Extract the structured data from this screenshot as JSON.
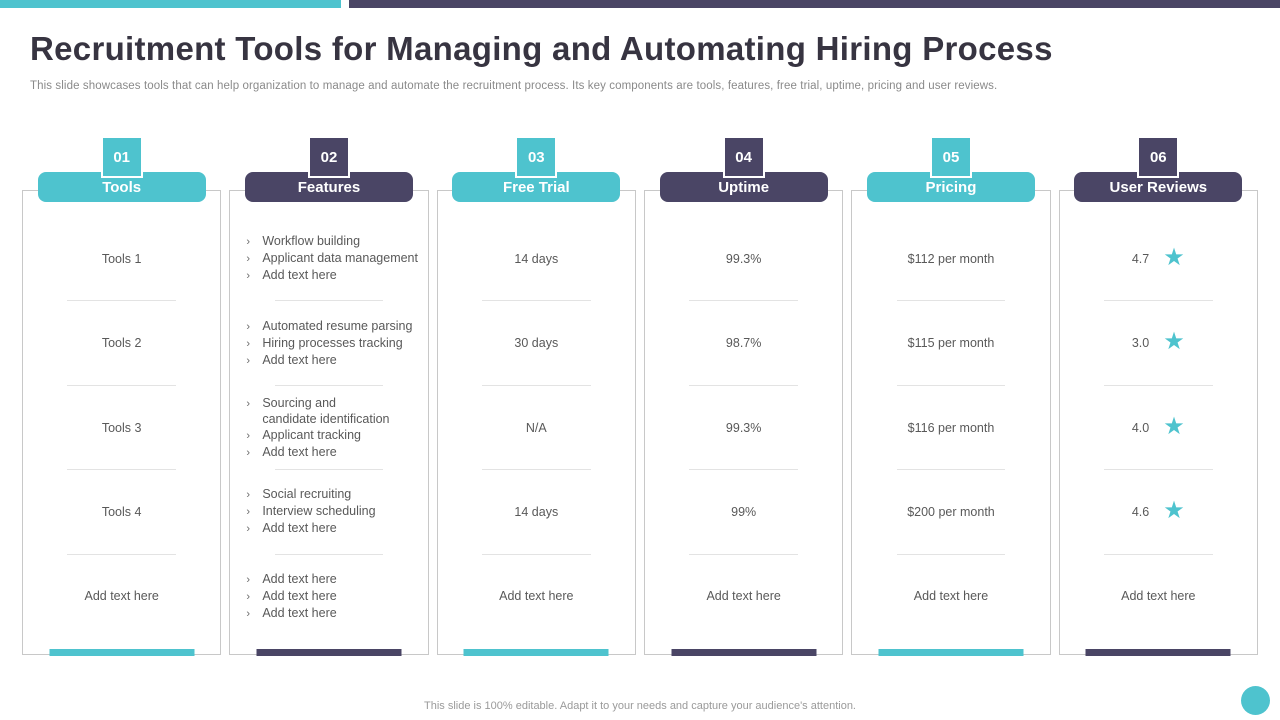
{
  "slide": {
    "title": "Recruitment Tools for Managing and Automating Hiring Process",
    "subtitle": "This slide showcases tools that can help organization to manage and automate the recruitment process. Its key components are tools, features, free trial, uptime, pricing and user reviews.",
    "footer": "This slide is 100% editable.  Adapt it to your needs and capture your audience's attention."
  },
  "colors": {
    "teal": "#4ec3ce",
    "purple": "#4a4565"
  },
  "icons": {
    "star": "★",
    "bullet": "›"
  },
  "columns": [
    {
      "number": "01",
      "label": "Tools",
      "rows": [
        "Tools 1",
        "Tools 2",
        "Tools 3",
        "Tools 4",
        "Add text here"
      ]
    },
    {
      "number": "02",
      "label": "Features",
      "rows": [
        [
          "Workflow building",
          "Applicant data management",
          "Add text here"
        ],
        [
          "Automated resume parsing",
          "Hiring processes tracking",
          "Add text here"
        ],
        [
          "Sourcing and\ncandidate identification",
          "Applicant tracking",
          "Add text here"
        ],
        [
          "Social recruiting",
          "Interview scheduling",
          "Add text here"
        ],
        [
          "Add text here",
          "Add text here",
          "Add text here"
        ]
      ]
    },
    {
      "number": "03",
      "label": "Free Trial",
      "rows": [
        "14 days",
        "30 days",
        "N/A",
        "14 days",
        "Add text here"
      ]
    },
    {
      "number": "04",
      "label": "Uptime",
      "rows": [
        "99.3%",
        "98.7%",
        "99.3%",
        "99%",
        "Add text here"
      ]
    },
    {
      "number": "05",
      "label": "Pricing",
      "rows": [
        "$112 per month",
        "$115 per month",
        "$116 per month",
        "$200 per month",
        "Add text here"
      ]
    },
    {
      "number": "06",
      "label": "User Reviews",
      "ratings": [
        "4.7",
        "3.0",
        "4.0",
        "4.6"
      ],
      "last_row": "Add text here"
    }
  ]
}
